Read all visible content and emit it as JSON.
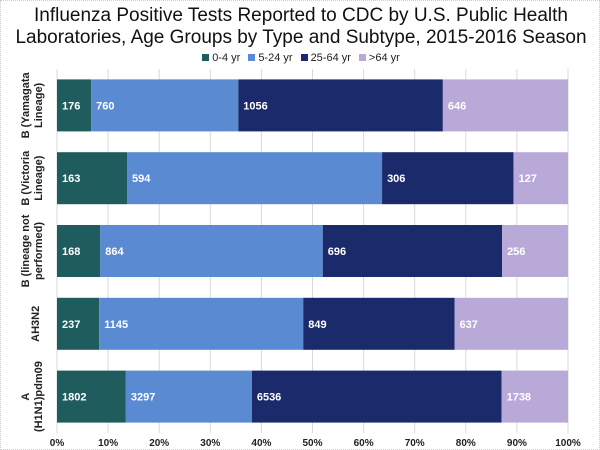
{
  "chart_data": {
    "type": "bar",
    "orientation": "horizontal",
    "stacked": "percent",
    "title": "Influenza Positive Tests Reported to CDC by U.S. Public Health Laboratories, Age Groups by Type and Subtype, 2015-2016 Season",
    "title_lines": [
      "Influenza Positive Tests Reported to CDC by U.S. Public Health",
      "Laboratories, Age Groups by Type and Subtype, 2015-2016 Season"
    ],
    "categories": [
      [
        "B (Yamagata",
        "Lineage)"
      ],
      [
        "B (Victoria",
        "Lineage)"
      ],
      [
        "B (lineage not",
        "performed)"
      ],
      [
        "AH3N2"
      ],
      [
        "A",
        "(H1N1)pdm09"
      ]
    ],
    "series": [
      {
        "name": "0-4 yr",
        "color": "#1f5c5e",
        "values": [
          176,
          163,
          168,
          237,
          1802
        ]
      },
      {
        "name": "5-24 yr",
        "color": "#5a8ad2",
        "values": [
          760,
          594,
          864,
          1145,
          3297
        ]
      },
      {
        "name": "25-64 yr",
        "color": "#1b2a6b",
        "values": [
          1056,
          306,
          696,
          849,
          6536
        ]
      },
      {
        "name": ">64 yr",
        "color": "#b9a9d8",
        "values": [
          646,
          127,
          256,
          637,
          1738
        ]
      }
    ],
    "xticks": [
      "0%",
      "10%",
      "20%",
      "30%",
      "40%",
      "50%",
      "60%",
      "70%",
      "80%",
      "90%",
      "100%"
    ],
    "xlim": [
      0,
      100
    ],
    "grid": true,
    "legend_position": "top"
  }
}
